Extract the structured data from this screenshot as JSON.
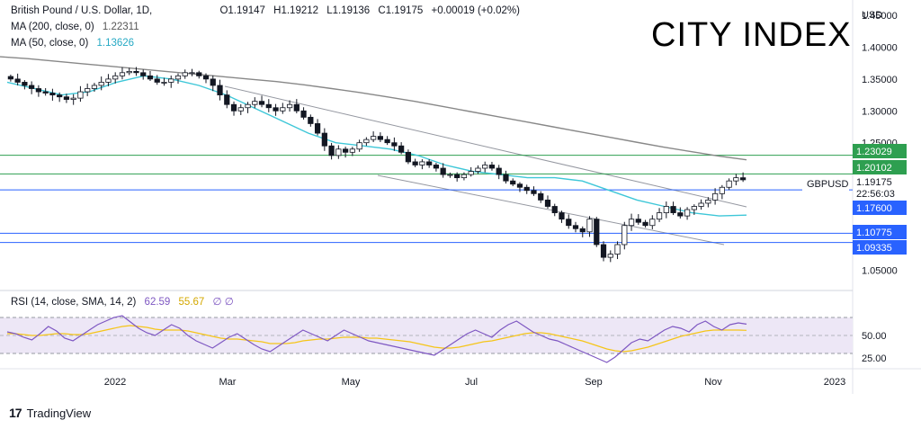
{
  "legend": {
    "symbol": "British Pound / U.S. Dollar, 1D,",
    "open": "O1.19147",
    "high": "H1.19212",
    "low": "L1.19136",
    "close": "C1.19175",
    "change": "+0.00019 (+0.02%)",
    "ma200_label": "MA (200, close, 0)",
    "ma200_value": "1.22311",
    "ma50_label": "MA (50, close, 0)",
    "ma50_value": "1.13626"
  },
  "brand": "CITY INDEX",
  "footer": "TradingView",
  "colors": {
    "ma200": "#888888",
    "ma50": "#3ec7d8",
    "price_level": "#2e9f50",
    "support": "#2962ff",
    "rsi": "#7e57c2",
    "rsi_sma": "#f5c518",
    "rsi_band": "#ede7f6",
    "candle": "#131722"
  },
  "rsi_legend": {
    "label": "RSI (14, close, SMA, 14, 2)",
    "rsi_value": "62.59",
    "sma_value": "55.67",
    "extra": "∅ ∅"
  },
  "tags": {
    "resistance_1": "1.23029",
    "resistance_2": "1.20102",
    "price_value": "1.19175",
    "symbol": "GBPUSD",
    "countdown": "22:56:03",
    "support_1": "1.17600",
    "support_2": "1.10775",
    "support_3": "1.09335"
  },
  "chart_data": {
    "type": "candlestick",
    "currency_label": "USD",
    "y_ticks": [
      "1.45000",
      "1.40000",
      "1.35000",
      "1.30000",
      "1.25000",
      "1.05000"
    ],
    "ylim": [
      1.025,
      1.46
    ],
    "x_ticks": [
      "2022",
      "Mar",
      "May",
      "Jul",
      "Sep",
      "Nov",
      "2023"
    ],
    "horizontal_levels": [
      {
        "value": 1.23029,
        "kind": "resistance"
      },
      {
        "value": 1.20102,
        "kind": "resistance"
      },
      {
        "value": 1.176,
        "kind": "support"
      },
      {
        "value": 1.10775,
        "kind": "support"
      },
      {
        "value": 1.09335,
        "kind": "support"
      }
    ],
    "close_series": [
      1.35,
      1.345,
      1.34,
      1.335,
      1.33,
      1.328,
      1.325,
      1.322,
      1.318,
      1.32,
      1.33,
      1.335,
      1.34,
      1.345,
      1.35,
      1.355,
      1.36,
      1.362,
      1.36,
      1.355,
      1.35,
      1.345,
      1.345,
      1.35,
      1.355,
      1.36,
      1.36,
      1.355,
      1.35,
      1.34,
      1.325,
      1.31,
      1.3,
      1.305,
      1.31,
      1.315,
      1.31,
      1.305,
      1.3,
      1.305,
      1.31,
      1.3,
      1.29,
      1.28,
      1.265,
      1.245,
      1.23,
      1.24,
      1.235,
      1.24,
      1.25,
      1.255,
      1.26,
      1.255,
      1.25,
      1.245,
      1.235,
      1.22,
      1.215,
      1.22,
      1.215,
      1.21,
      1.2,
      1.2,
      1.195,
      1.2,
      1.205,
      1.21,
      1.215,
      1.21,
      1.2,
      1.19,
      1.185,
      1.18,
      1.175,
      1.17,
      1.16,
      1.15,
      1.14,
      1.13,
      1.12,
      1.115,
      1.11,
      1.13,
      1.09,
      1.07,
      1.075,
      1.09,
      1.12,
      1.13,
      1.125,
      1.12,
      1.13,
      1.14,
      1.15,
      1.14,
      1.135,
      1.145,
      1.15,
      1.155,
      1.16,
      1.17,
      1.18,
      1.19,
      1.195,
      1.19175
    ],
    "ma200_series": [
      1.385,
      1.382,
      1.378,
      1.374,
      1.37,
      1.366,
      1.362,
      1.358,
      1.354,
      1.35,
      1.346,
      1.341,
      1.335,
      1.329,
      1.322,
      1.315,
      1.307,
      1.299,
      1.291,
      1.283,
      1.275,
      1.267,
      1.259,
      1.251,
      1.243,
      1.236,
      1.229,
      1.22311
    ],
    "ma50_series": [
      1.345,
      1.335,
      1.325,
      1.33,
      1.345,
      1.355,
      1.35,
      1.34,
      1.325,
      1.305,
      1.285,
      1.265,
      1.25,
      1.245,
      1.24,
      1.23,
      1.215,
      1.205,
      1.2,
      1.195,
      1.195,
      1.19,
      1.175,
      1.16,
      1.15,
      1.14,
      1.135,
      1.13626
    ],
    "rsi": {
      "ylim": [
        15,
        95
      ],
      "ticks": [
        50.0,
        25.0
      ],
      "band": [
        30,
        70
      ],
      "values": [
        54,
        52,
        48,
        45,
        52,
        60,
        55,
        47,
        44,
        50,
        56,
        62,
        66,
        70,
        72,
        65,
        58,
        53,
        50,
        56,
        62,
        58,
        50,
        44,
        40,
        36,
        42,
        48,
        52,
        46,
        40,
        35,
        32,
        38,
        44,
        50,
        56,
        52,
        48,
        44,
        50,
        56,
        52,
        48,
        44,
        42,
        40,
        38,
        36,
        34,
        32,
        30,
        28,
        34,
        40,
        46,
        52,
        56,
        52,
        48,
        56,
        62,
        66,
        60,
        54,
        50,
        46,
        44,
        40,
        36,
        32,
        28,
        24,
        20,
        26,
        34,
        42,
        46,
        44,
        50,
        56,
        60,
        58,
        54,
        62,
        66,
        60,
        56,
        62,
        64,
        62.59
      ],
      "sma_values": [
        52,
        52,
        51,
        50,
        50,
        51,
        52,
        52,
        51,
        51,
        52,
        54,
        56,
        58,
        60,
        61,
        60,
        59,
        57,
        56,
        56,
        56,
        55,
        53,
        51,
        49,
        47,
        46,
        46,
        45,
        44,
        43,
        41,
        41,
        41,
        42,
        44,
        45,
        46,
        46,
        47,
        48,
        48,
        48,
        47,
        47,
        46,
        45,
        44,
        43,
        41,
        39,
        37,
        36,
        36,
        37,
        39,
        41,
        43,
        44,
        46,
        48,
        50,
        52,
        53,
        53,
        52,
        50,
        48,
        46,
        44,
        41,
        38,
        35,
        33,
        32,
        33,
        35,
        37,
        40,
        43,
        46,
        49,
        51,
        53,
        55,
        56,
        56,
        56,
        56,
        55.67
      ]
    }
  }
}
